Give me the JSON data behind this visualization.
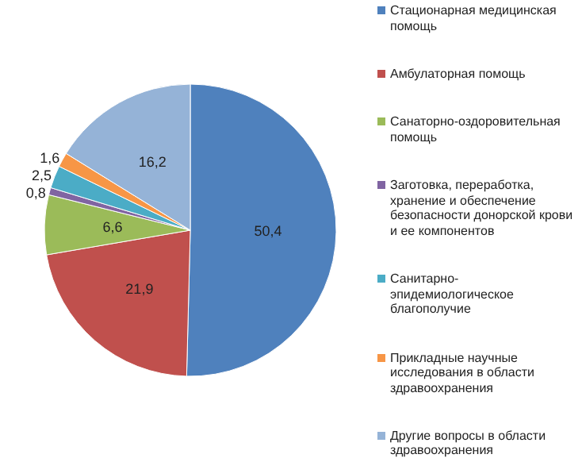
{
  "chart_data": {
    "type": "pie",
    "categories": [
      "Стационарная медицинская помощь",
      "Амбулаторная помощь",
      "Санаторно-оздоровительная помощь",
      "Заготовка, переработка, хранение и обеспечение безопасности донорской крови и ее компонентов",
      "Санитарно-эпидемиологическое благополучие",
      "Прикладные научные исследования в области здравоохранения",
      "Другие вопросы в области здравоохранения"
    ],
    "values": [
      50.4,
      21.9,
      6.6,
      0.8,
      2.5,
      1.6,
      16.2
    ],
    "colors": [
      "#4f81bd",
      "#c0504d",
      "#9bbb59",
      "#8064a2",
      "#4bacc6",
      "#f79646",
      "#95b3d7"
    ],
    "value_labels": [
      "50,4",
      "21,9",
      "6,6",
      "0,8",
      "2,5",
      "1,6",
      "16,2"
    ],
    "legend": "right"
  }
}
